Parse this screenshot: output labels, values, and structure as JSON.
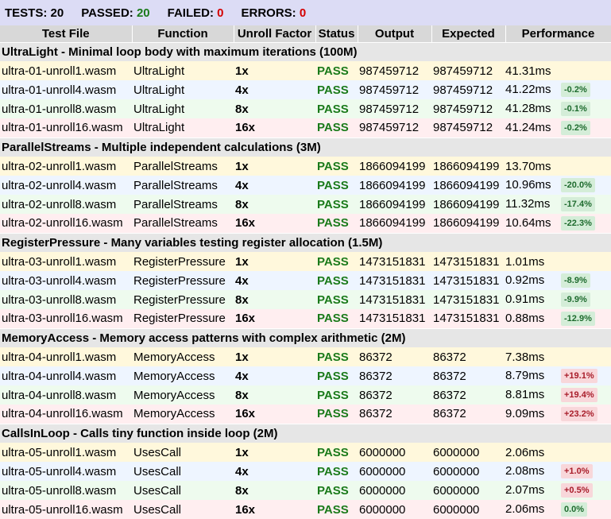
{
  "summary": {
    "tests_label": "TESTS:",
    "tests": "20",
    "passed_label": "PASSED:",
    "passed": "20",
    "failed_label": "FAILED:",
    "failed": "0",
    "errors_label": "ERRORS:",
    "errors": "0",
    "passed_color": "#1a7a1a",
    "failed_color": "#d40000"
  },
  "headers": [
    "Test File",
    "Function",
    "Unroll Factor",
    "Status",
    "Output",
    "Expected",
    "Performance"
  ],
  "groups": [
    {
      "title": "UltraLight - Minimal loop body with maximum iterations (100M)",
      "rows": [
        {
          "file": "ultra-01-unroll1.wasm",
          "function": "UltraLight",
          "factor": "1x",
          "status": "PASS",
          "output": "987459712",
          "expected": "987459712",
          "time": "41.31ms",
          "delta": ""
        },
        {
          "file": "ultra-01-unroll4.wasm",
          "function": "UltraLight",
          "factor": "4x",
          "status": "PASS",
          "output": "987459712",
          "expected": "987459712",
          "time": "41.22ms",
          "delta": "-0.2%"
        },
        {
          "file": "ultra-01-unroll8.wasm",
          "function": "UltraLight",
          "factor": "8x",
          "status": "PASS",
          "output": "987459712",
          "expected": "987459712",
          "time": "41.28ms",
          "delta": "-0.1%"
        },
        {
          "file": "ultra-01-unroll16.wasm",
          "function": "UltraLight",
          "factor": "16x",
          "status": "PASS",
          "output": "987459712",
          "expected": "987459712",
          "time": "41.24ms",
          "delta": "-0.2%"
        }
      ]
    },
    {
      "title": "ParallelStreams - Multiple independent calculations (3M)",
      "rows": [
        {
          "file": "ultra-02-unroll1.wasm",
          "function": "ParallelStreams",
          "factor": "1x",
          "status": "PASS",
          "output": "1866094199",
          "expected": "1866094199",
          "time": "13.70ms",
          "delta": ""
        },
        {
          "file": "ultra-02-unroll4.wasm",
          "function": "ParallelStreams",
          "factor": "4x",
          "status": "PASS",
          "output": "1866094199",
          "expected": "1866094199",
          "time": "10.96ms",
          "delta": "-20.0%"
        },
        {
          "file": "ultra-02-unroll8.wasm",
          "function": "ParallelStreams",
          "factor": "8x",
          "status": "PASS",
          "output": "1866094199",
          "expected": "1866094199",
          "time": "11.32ms",
          "delta": "-17.4%"
        },
        {
          "file": "ultra-02-unroll16.wasm",
          "function": "ParallelStreams",
          "factor": "16x",
          "status": "PASS",
          "output": "1866094199",
          "expected": "1866094199",
          "time": "10.64ms",
          "delta": "-22.3%"
        }
      ]
    },
    {
      "title": "RegisterPressure - Many variables testing register allocation (1.5M)",
      "rows": [
        {
          "file": "ultra-03-unroll1.wasm",
          "function": "RegisterPressure",
          "factor": "1x",
          "status": "PASS",
          "output": "1473151831",
          "expected": "1473151831",
          "time": "1.01ms",
          "delta": ""
        },
        {
          "file": "ultra-03-unroll4.wasm",
          "function": "RegisterPressure",
          "factor": "4x",
          "status": "PASS",
          "output": "1473151831",
          "expected": "1473151831",
          "time": "0.92ms",
          "delta": "-8.9%"
        },
        {
          "file": "ultra-03-unroll8.wasm",
          "function": "RegisterPressure",
          "factor": "8x",
          "status": "PASS",
          "output": "1473151831",
          "expected": "1473151831",
          "time": "0.91ms",
          "delta": "-9.9%"
        },
        {
          "file": "ultra-03-unroll16.wasm",
          "function": "RegisterPressure",
          "factor": "16x",
          "status": "PASS",
          "output": "1473151831",
          "expected": "1473151831",
          "time": "0.88ms",
          "delta": "-12.9%"
        }
      ]
    },
    {
      "title": "MemoryAccess - Memory access patterns with complex arithmetic (2M)",
      "rows": [
        {
          "file": "ultra-04-unroll1.wasm",
          "function": "MemoryAccess",
          "factor": "1x",
          "status": "PASS",
          "output": "86372",
          "expected": "86372",
          "time": "7.38ms",
          "delta": ""
        },
        {
          "file": "ultra-04-unroll4.wasm",
          "function": "MemoryAccess",
          "factor": "4x",
          "status": "PASS",
          "output": "86372",
          "expected": "86372",
          "time": "8.79ms",
          "delta": "+19.1%"
        },
        {
          "file": "ultra-04-unroll8.wasm",
          "function": "MemoryAccess",
          "factor": "8x",
          "status": "PASS",
          "output": "86372",
          "expected": "86372",
          "time": "8.81ms",
          "delta": "+19.4%"
        },
        {
          "file": "ultra-04-unroll16.wasm",
          "function": "MemoryAccess",
          "factor": "16x",
          "status": "PASS",
          "output": "86372",
          "expected": "86372",
          "time": "9.09ms",
          "delta": "+23.2%"
        }
      ]
    },
    {
      "title": "CallsInLoop - Calls tiny function inside loop (2M)",
      "rows": [
        {
          "file": "ultra-05-unroll1.wasm",
          "function": "UsesCall",
          "factor": "1x",
          "status": "PASS",
          "output": "6000000",
          "expected": "6000000",
          "time": "2.06ms",
          "delta": ""
        },
        {
          "file": "ultra-05-unroll4.wasm",
          "function": "UsesCall",
          "factor": "4x",
          "status": "PASS",
          "output": "6000000",
          "expected": "6000000",
          "time": "2.08ms",
          "delta": "+1.0%"
        },
        {
          "file": "ultra-05-unroll8.wasm",
          "function": "UsesCall",
          "factor": "8x",
          "status": "PASS",
          "output": "6000000",
          "expected": "6000000",
          "time": "2.07ms",
          "delta": "+0.5%"
        },
        {
          "file": "ultra-05-unroll16.wasm",
          "function": "UsesCall",
          "factor": "16x",
          "status": "PASS",
          "output": "6000000",
          "expected": "6000000",
          "time": "2.06ms",
          "delta": "0.0%"
        }
      ]
    }
  ]
}
